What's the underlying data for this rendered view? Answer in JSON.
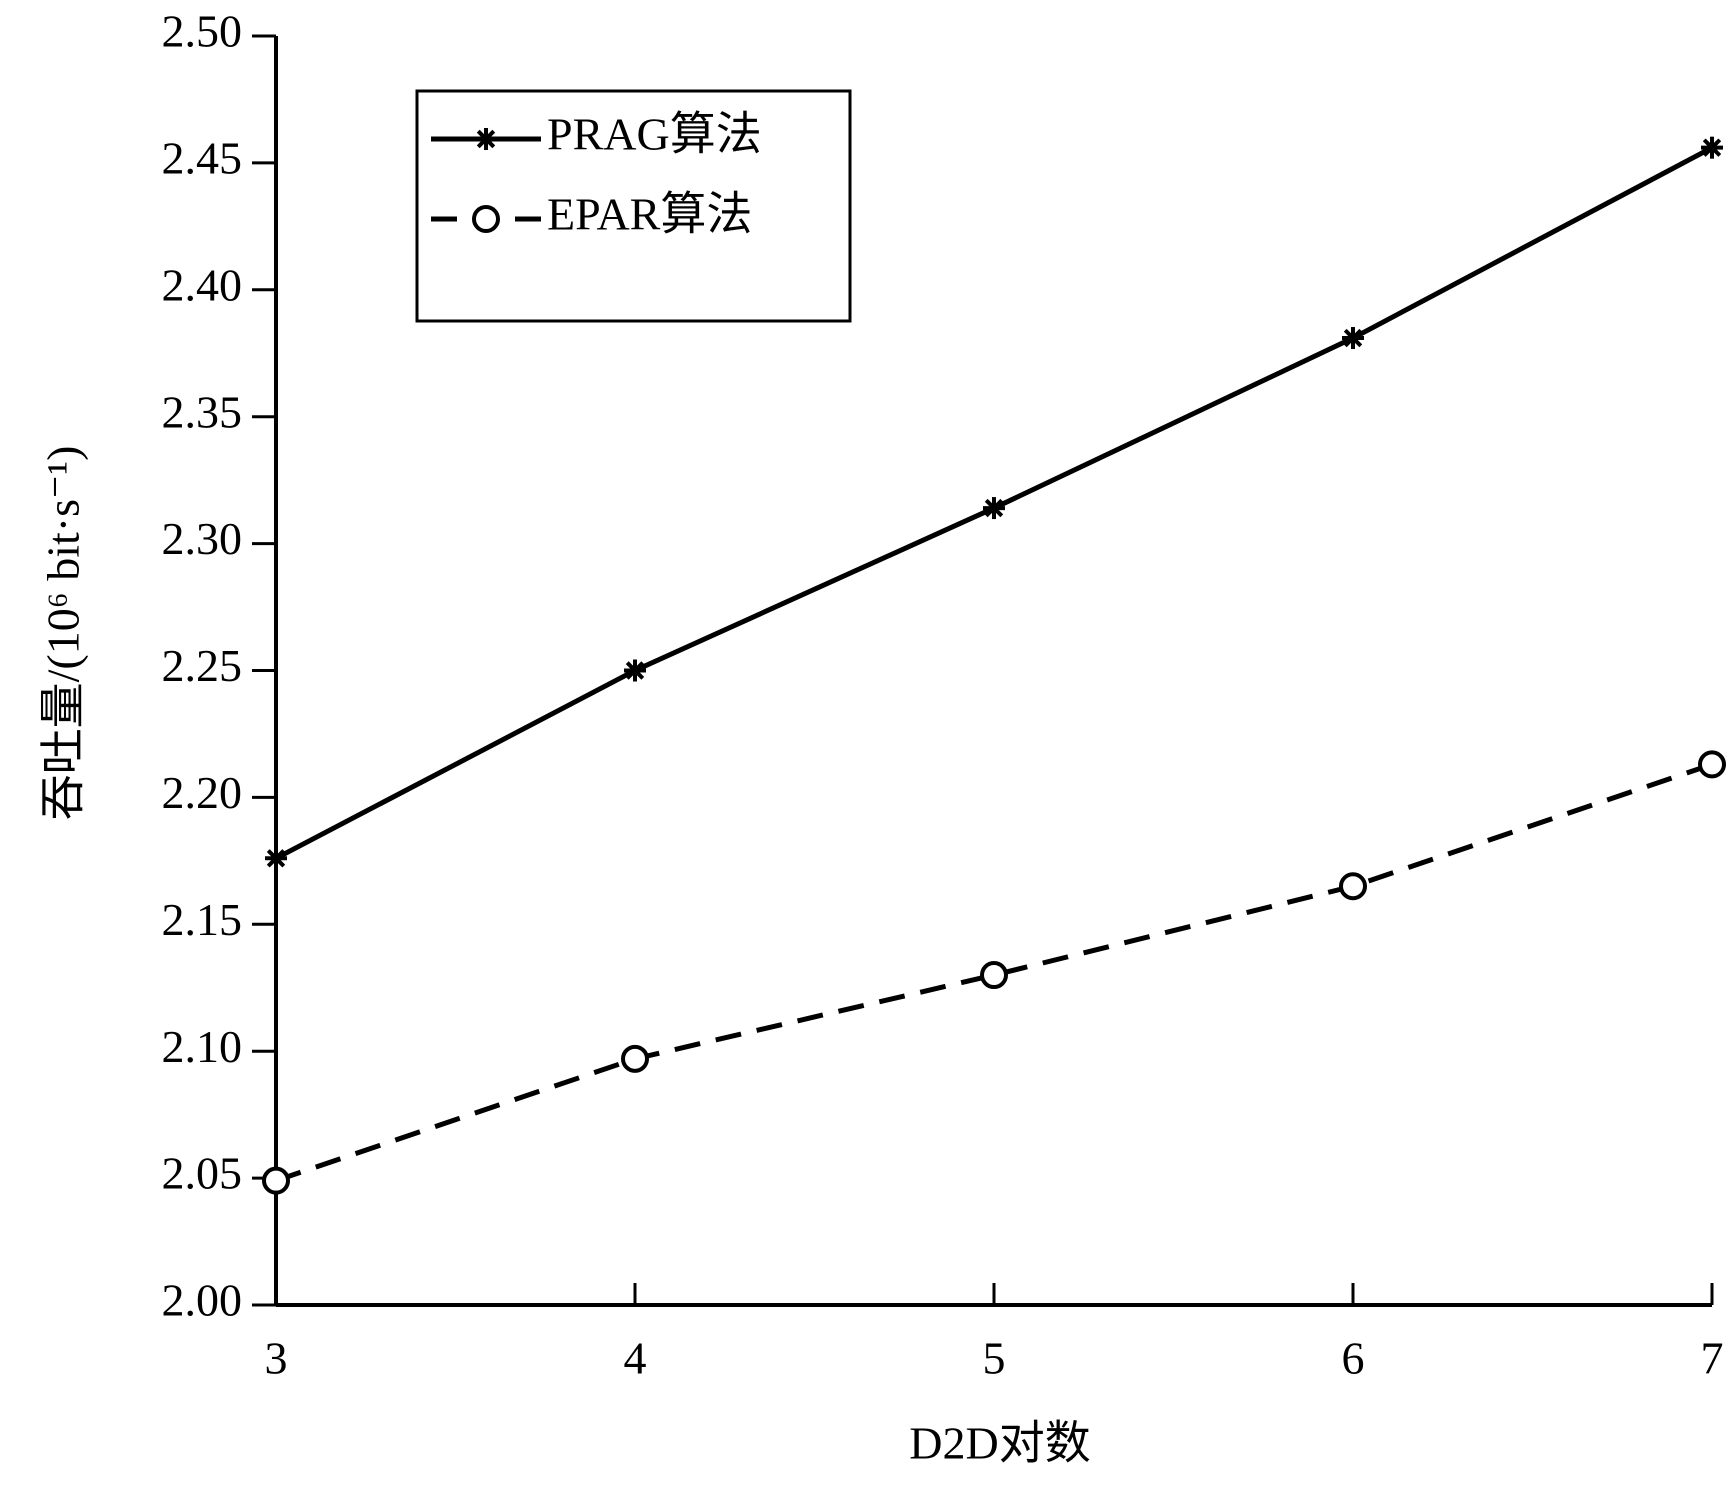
{
  "chart_data": {
    "type": "line",
    "xlabel": "D2D对数",
    "ylabel": "吞吐量/(10⁶ bit·s⁻¹)",
    "x": [
      3,
      4,
      5,
      6,
      7
    ],
    "xlim": [
      3,
      7
    ],
    "xticks": [
      3,
      4,
      5,
      6,
      7
    ],
    "ylim": [
      2.0,
      2.5
    ],
    "yticks": [
      {
        "value": 2.0,
        "label": "2.00"
      },
      2.05,
      {
        "value": 2.1,
        "label": "2.10"
      },
      2.15,
      {
        "value": 2.2,
        "label": "2.20"
      },
      2.25,
      {
        "value": 2.3,
        "label": "2.30"
      },
      2.35,
      {
        "value": 2.4,
        "label": "2.40"
      },
      2.45,
      {
        "value": 2.5,
        "label": "2.50"
      }
    ],
    "grid": false,
    "legend": "upper left",
    "series": [
      {
        "name": "PRAG算法",
        "color": "#000000",
        "linestyle": "solid",
        "marker": "asterisk",
        "values": [
          2.176,
          2.25,
          2.314,
          2.381,
          2.456
        ]
      },
      {
        "name": "EPAR算法",
        "color": "#000000",
        "linestyle": "dashed",
        "marker": "circle",
        "values": [
          2.049,
          2.097,
          2.13,
          2.165,
          2.213
        ]
      }
    ]
  }
}
